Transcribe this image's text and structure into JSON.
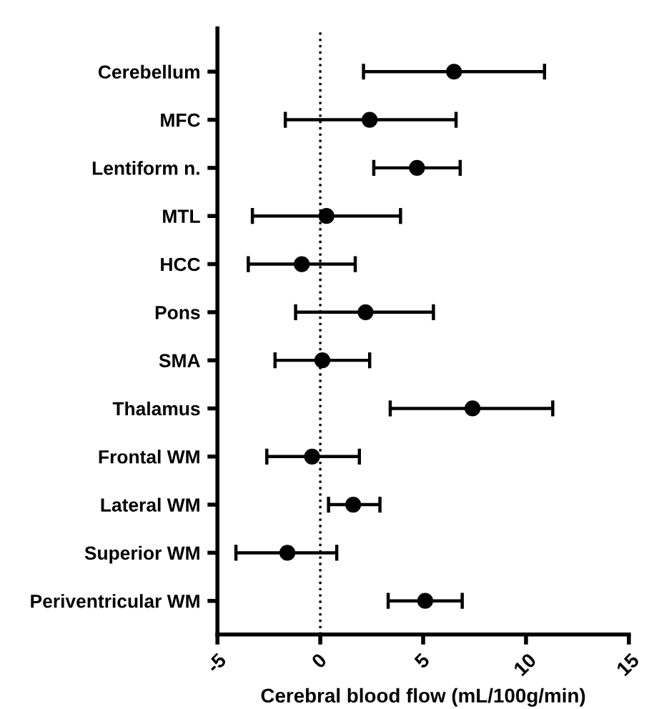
{
  "chart_data": {
    "type": "scatter",
    "orientation": "horizontal",
    "categories": [
      "Cerebellum",
      "MFC",
      "Lentiform n.",
      "MTL",
      "HCC",
      "Pons",
      "SMA",
      "Thalamus",
      "Frontal WM",
      "Lateral WM",
      "Superior WM",
      "Periventricular WM"
    ],
    "values": [
      6.5,
      2.4,
      4.7,
      0.3,
      -0.9,
      2.2,
      0.1,
      7.4,
      -0.4,
      1.6,
      -1.6,
      5.1
    ],
    "errors": [
      [
        2.1,
        10.9
      ],
      [
        -1.7,
        6.6
      ],
      [
        2.6,
        6.8
      ],
      [
        -3.3,
        3.9
      ],
      [
        -3.5,
        1.7
      ],
      [
        -1.2,
        5.5
      ],
      [
        -2.2,
        2.4
      ],
      [
        3.4,
        11.3
      ],
      [
        -2.6,
        1.9
      ],
      [
        0.4,
        2.9
      ],
      [
        -4.1,
        0.8
      ],
      [
        3.3,
        6.9
      ]
    ],
    "color": "#000000",
    "marker": "circle",
    "xlabel": "Cerebral blood flow (mL/100g/min)",
    "xlim": [
      -5,
      15
    ],
    "xticks": [
      -5,
      0,
      5,
      10,
      15
    ],
    "ref_lines": [
      {
        "axis": "x",
        "value": 0,
        "line_style": "dotted",
        "color": "#000000"
      }
    ],
    "grid": false,
    "legend": false
  }
}
